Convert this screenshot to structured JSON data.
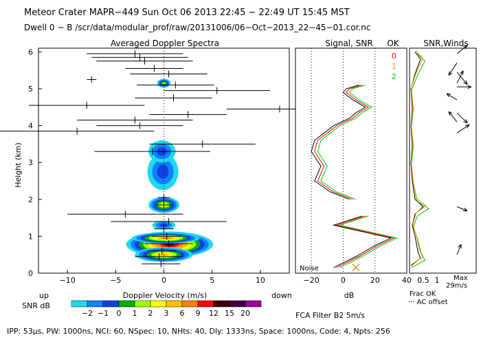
{
  "header": {
    "line1": "Meteor Crater   MAPR−449   Sun Oct 06 2013 22:45 − 22:49 UT 15:45 MST",
    "line2": "Dwell   0 −  B    /scr/data/modular_prof/raw/20131006/06−Oct−2013_22−45−01.cor.nc"
  },
  "footer": {
    "params": "IPP: 53μs,  PW: 1000ns,  NCI: 60,  NSpec: 10, NHts: 40,  Dly: 1333ns,  Space: 1000ns,  Code: 4,  Npts: 256"
  },
  "chart_data": [
    {
      "type": "heatmap",
      "title": "Averaged Doppler Spectra",
      "xlabel": "Doppler Velocity (m/s)",
      "ylabel": "Height (km)",
      "xlim": [
        -13,
        13
      ],
      "ylim": [
        0,
        6.1
      ],
      "x_ticks": [
        -10,
        -5,
        0,
        5,
        10
      ],
      "y_ticks": [
        0,
        1,
        2,
        3,
        4,
        5,
        6
      ],
      "x_left_note": "up",
      "x_right_note": "down",
      "moments": [
        {
          "h": 0.25,
          "v": -0.3,
          "w": 2.0
        },
        {
          "h": 0.45,
          "v": -0.5,
          "w": 2.5
        },
        {
          "h": 0.6,
          "v": -0.2,
          "w": 1.5
        },
        {
          "h": 0.8,
          "v": 0.5,
          "w": 2.5
        },
        {
          "h": 1.0,
          "v": 0.3,
          "w": 1.5
        },
        {
          "h": 1.2,
          "v": 0.0,
          "w": 1.0
        },
        {
          "h": 1.4,
          "v": 0.5,
          "w": 6.0
        },
        {
          "h": 1.6,
          "v": -4.0,
          "w": 6.0
        },
        {
          "h": 1.85,
          "v": 0.0,
          "w": 0.8
        },
        {
          "h": 2.05,
          "v": 0.0,
          "w": 0.6
        },
        {
          "h": 3.3,
          "v": -1.2,
          "w": 6.0
        },
        {
          "h": 3.5,
          "v": 4.0,
          "w": 5.5
        },
        {
          "h": 3.85,
          "v": -9.0,
          "w": 8.0
        },
        {
          "h": 4.0,
          "v": -2.5,
          "w": 4.5
        },
        {
          "h": 4.15,
          "v": -3.0,
          "w": 6.0
        },
        {
          "h": 4.3,
          "v": 2.5,
          "w": 4.0
        },
        {
          "h": 4.55,
          "v": -8.0,
          "w": 6.0
        },
        {
          "h": 4.45,
          "v": 12.0,
          "w": 5.5
        },
        {
          "h": 4.75,
          "v": 1.0,
          "w": 4.0
        },
        {
          "h": 4.95,
          "v": 5.5,
          "w": 5.5
        },
        {
          "h": 5.1,
          "v": 1.2,
          "w": 4.0
        },
        {
          "h": 5.4,
          "v": 0.5,
          "w": 4.0
        },
        {
          "h": 5.55,
          "v": -1.0,
          "w": 3.0
        },
        {
          "h": 5.75,
          "v": -2.0,
          "w": 5.0
        },
        {
          "h": 5.85,
          "v": -2.5,
          "w": 5.0
        },
        {
          "h": 5.95,
          "v": -3.0,
          "w": 5.0
        },
        {
          "h": 5.25,
          "v": -7.5,
          "w": 0.5
        }
      ],
      "colorbar": {
        "label": "SNR dB",
        "ticks": [
          "−2",
          "−1",
          "0",
          "1",
          "2",
          "3",
          "6",
          "9",
          "12",
          "15",
          "20"
        ],
        "colors": [
          "#20d8f0",
          "#1080ff",
          "#1040e0",
          "#00b000",
          "#a0ff00",
          "#ffff00",
          "#ffc000",
          "#ff8000",
          "#ff0000",
          "#400000",
          "#400040",
          "#a000a0"
        ]
      }
    },
    {
      "type": "line",
      "title": "Signal, SNR",
      "xlabel": "dB",
      "xlim": [
        -30,
        40
      ],
      "x_ticks": [
        -20,
        0,
        20,
        40
      ],
      "x_tick_labels": [
        "−20",
        "0",
        "20",
        "40"
      ],
      "noise_label": "Noise",
      "legend": {
        "title": "OK",
        "entries": [
          "0",
          "1",
          "2"
        ],
        "colors": [
          "#ff0000",
          "#ff9000",
          "#00d000"
        ]
      },
      "series": [
        {
          "name": "0",
          "color": "#000000",
          "points": [
            [
              -6,
              0.15
            ],
            [
              8,
              0.45
            ],
            [
              20,
              0.75
            ],
            [
              30,
              0.95
            ],
            [
              -6,
              1.3
            ],
            [
              12,
              1.55
            ],
            [
              4,
              2.0
            ],
            [
              -8,
              2.2
            ],
            [
              -18,
              2.5
            ],
            [
              -14,
              2.9
            ],
            [
              -20,
              3.3
            ],
            [
              -18,
              3.6
            ],
            [
              -12,
              3.8
            ],
            [
              -6,
              4.0
            ],
            [
              4,
              4.2
            ],
            [
              8,
              4.35
            ],
            [
              14,
              4.5
            ],
            [
              6,
              4.7
            ],
            [
              0,
              4.9
            ],
            [
              2,
              5.0
            ],
            [
              10,
              5.1
            ]
          ]
        },
        {
          "name": "1",
          "color": "#ff0000",
          "points": [
            [
              -4,
              0.15
            ],
            [
              10,
              0.45
            ],
            [
              22,
              0.75
            ],
            [
              32,
              0.95
            ],
            [
              -4,
              1.3
            ],
            [
              14,
              1.55
            ],
            [
              6,
              2.0
            ],
            [
              -6,
              2.2
            ],
            [
              -16,
              2.5
            ],
            [
              -12,
              2.9
            ],
            [
              -18,
              3.3
            ],
            [
              -16,
              3.6
            ],
            [
              -10,
              3.8
            ],
            [
              -4,
              4.0
            ],
            [
              6,
              4.2
            ],
            [
              10,
              4.35
            ],
            [
              16,
              4.5
            ],
            [
              8,
              4.7
            ],
            [
              2,
              4.9
            ],
            [
              4,
              5.0
            ],
            [
              12,
              5.1
            ]
          ]
        },
        {
          "name": "2",
          "color": "#00d000",
          "points": [
            [
              -2,
              0.15
            ],
            [
              12,
              0.45
            ],
            [
              24,
              0.75
            ],
            [
              34,
              0.95
            ],
            [
              -2,
              1.3
            ],
            [
              16,
              1.55
            ],
            [
              8,
              2.0
            ],
            [
              -4,
              2.2
            ],
            [
              -14,
              2.5
            ],
            [
              -10,
              2.9
            ],
            [
              -16,
              3.3
            ],
            [
              -14,
              3.6
            ],
            [
              -8,
              3.8
            ],
            [
              -2,
              4.0
            ],
            [
              8,
              4.2
            ],
            [
              12,
              4.35
            ],
            [
              18,
              4.5
            ],
            [
              10,
              4.7
            ],
            [
              4,
              4.9
            ],
            [
              6,
              5.0
            ],
            [
              14,
              5.1
            ]
          ]
        }
      ],
      "bottom_x_marker": {
        "value": 8,
        "height": 0.15
      }
    },
    {
      "type": "line",
      "title": "SNR,Winds",
      "x_ticks": [
        0.5,
        1
      ],
      "x_tick_labels": [
        "0.5",
        "1"
      ],
      "xlabel_left": "Frac OK",
      "xlabel_left_note": "AC offset",
      "max_label": "Max",
      "max_value": "29m/s",
      "frac_ok": [
        [
          0.05,
          0.2
        ],
        [
          0.4,
          0.4
        ],
        [
          0.3,
          0.6
        ],
        [
          0.25,
          0.8
        ],
        [
          0.2,
          1.0
        ],
        [
          0.1,
          1.3
        ],
        [
          0.2,
          1.6
        ],
        [
          0.5,
          1.8
        ],
        [
          0.2,
          2.0
        ],
        [
          0.1,
          2.5
        ],
        [
          0.05,
          3.0
        ],
        [
          0.1,
          3.5
        ],
        [
          0.05,
          4.0
        ],
        [
          0.1,
          4.5
        ],
        [
          0.05,
          5.0
        ],
        [
          0.2,
          5.4
        ],
        [
          0.3,
          5.6
        ],
        [
          0.4,
          5.8
        ],
        [
          0.2,
          6.0
        ]
      ],
      "winds": [
        {
          "h": 0.5,
          "u": 0.2,
          "v": 0.5
        },
        {
          "h": 1.8,
          "u": 0.5,
          "v": -0.2
        },
        {
          "h": 3.8,
          "u": 0.6,
          "v": 0.4
        },
        {
          "h": 4.1,
          "u": -0.4,
          "v": 0.5
        },
        {
          "h": 4.35,
          "u": 0.5,
          "v": -0.5
        },
        {
          "h": 4.7,
          "u": -0.5,
          "v": 0.3
        },
        {
          "h": 5.05,
          "u": 0.7,
          "v": 0.0
        },
        {
          "h": 5.15,
          "u": 0.3,
          "v": 0.6
        },
        {
          "h": 5.45,
          "u": 0.5,
          "v": -0.6
        },
        {
          "h": 5.7,
          "u": -0.4,
          "v": -0.6
        },
        {
          "h": 5.95,
          "u": 0.5,
          "v": 0.4
        }
      ]
    }
  ],
  "bottom_notes": {
    "filter": "FCA Filter B2   5m/s"
  }
}
